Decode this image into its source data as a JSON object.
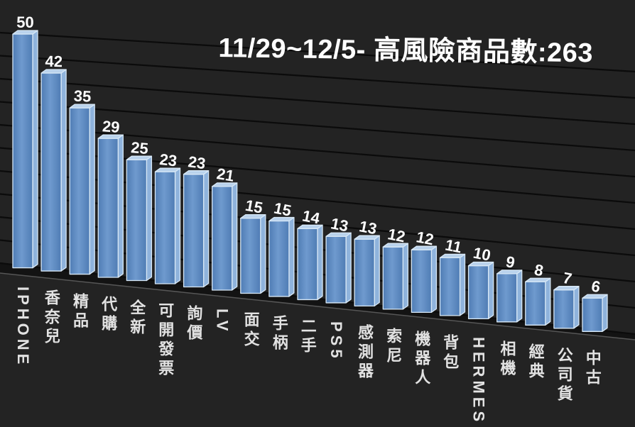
{
  "title": {
    "text": "11/29~12/5- 高風險商品數:263"
  },
  "chart_data": {
    "type": "bar",
    "style": "3d-column",
    "theme": "dark",
    "title": "11/29~12/5- 高風險商品數:263",
    "categories": [
      "IPHONE",
      "香奈兒",
      "精品",
      "代購",
      "全新",
      "可開發票",
      "詢價",
      "LV",
      "面交",
      "手柄",
      "二手",
      "PS5",
      "感測器",
      "索尼",
      "機器人",
      "背包",
      "HERMES",
      "相機",
      "經典",
      "公司貨",
      "中古"
    ],
    "values": [
      50,
      42,
      35,
      29,
      25,
      23,
      23,
      21,
      15,
      15,
      14,
      13,
      13,
      12,
      12,
      11,
      10,
      9,
      8,
      7,
      6
    ],
    "xlabel": "",
    "ylabel": "",
    "ylim": [
      0,
      50
    ],
    "gridline_interval": 5,
    "grid": true,
    "legend": "none",
    "data_labels": true,
    "category_label_orientation": "vertical",
    "total_shown_in_title": 263
  },
  "colors": {
    "background": "#232323",
    "gridline": "#0b0b0b",
    "floor": "#131313",
    "floor_edge": "#565656",
    "bar_front": "#4f7cb4",
    "bar_front_light": "#6f9ace",
    "bar_side": "#8fb3dc",
    "bar_top": "#b9d2ec",
    "bar_edge": "#d8e8f6",
    "value_label": "#ffffff",
    "category_label": "#e2e2e2",
    "title": "#ffffff"
  }
}
